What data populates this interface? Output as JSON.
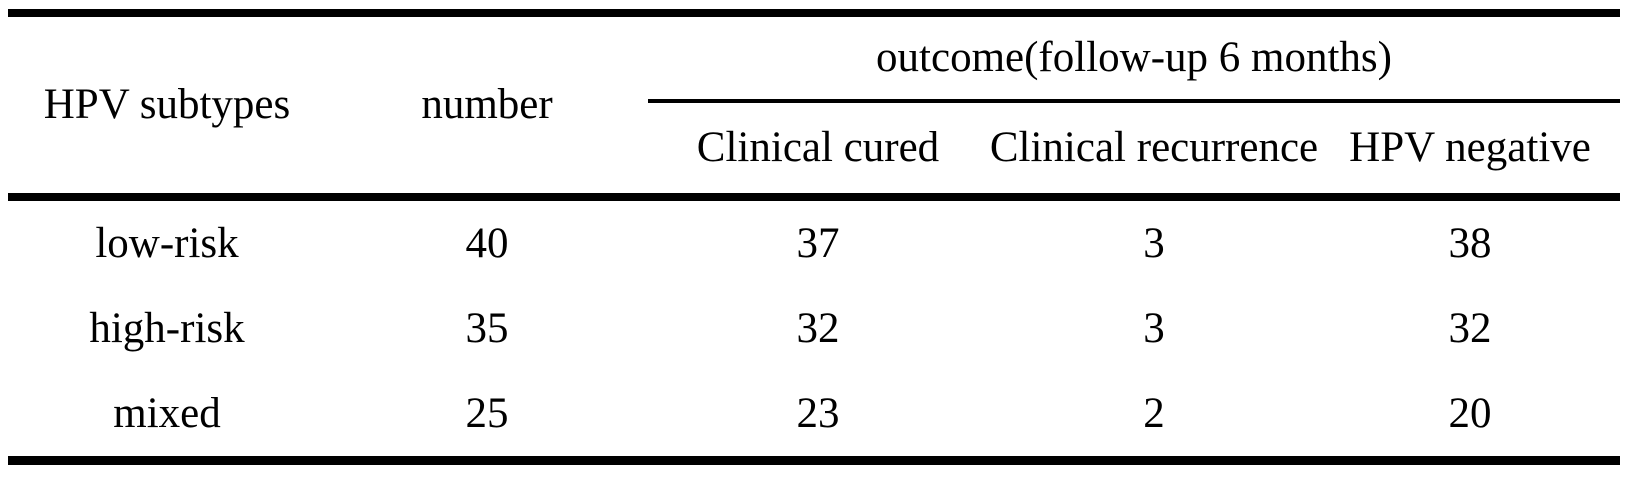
{
  "table": {
    "header": {
      "hpv_subtypes": "HPV subtypes",
      "number": "number",
      "outcome_group": "outcome(follow-up 6 months)",
      "clinical_cured": "Clinical cured",
      "clinical_recurrence": "Clinical recurrence",
      "hpv_negative": "HPV negative"
    },
    "rows": [
      {
        "subtype": "low-risk",
        "number": "40",
        "clinical_cured": "37",
        "clinical_recurrence": "3",
        "hpv_negative": "38"
      },
      {
        "subtype": "high-risk",
        "number": "35",
        "clinical_cured": "32",
        "clinical_recurrence": "3",
        "hpv_negative": "32"
      },
      {
        "subtype": "mixed",
        "number": "25",
        "clinical_cured": "23",
        "clinical_recurrence": "2",
        "hpv_negative": "20"
      }
    ],
    "colors": {
      "text": "#000000",
      "background": "#ffffff",
      "rule": "#000000"
    }
  }
}
